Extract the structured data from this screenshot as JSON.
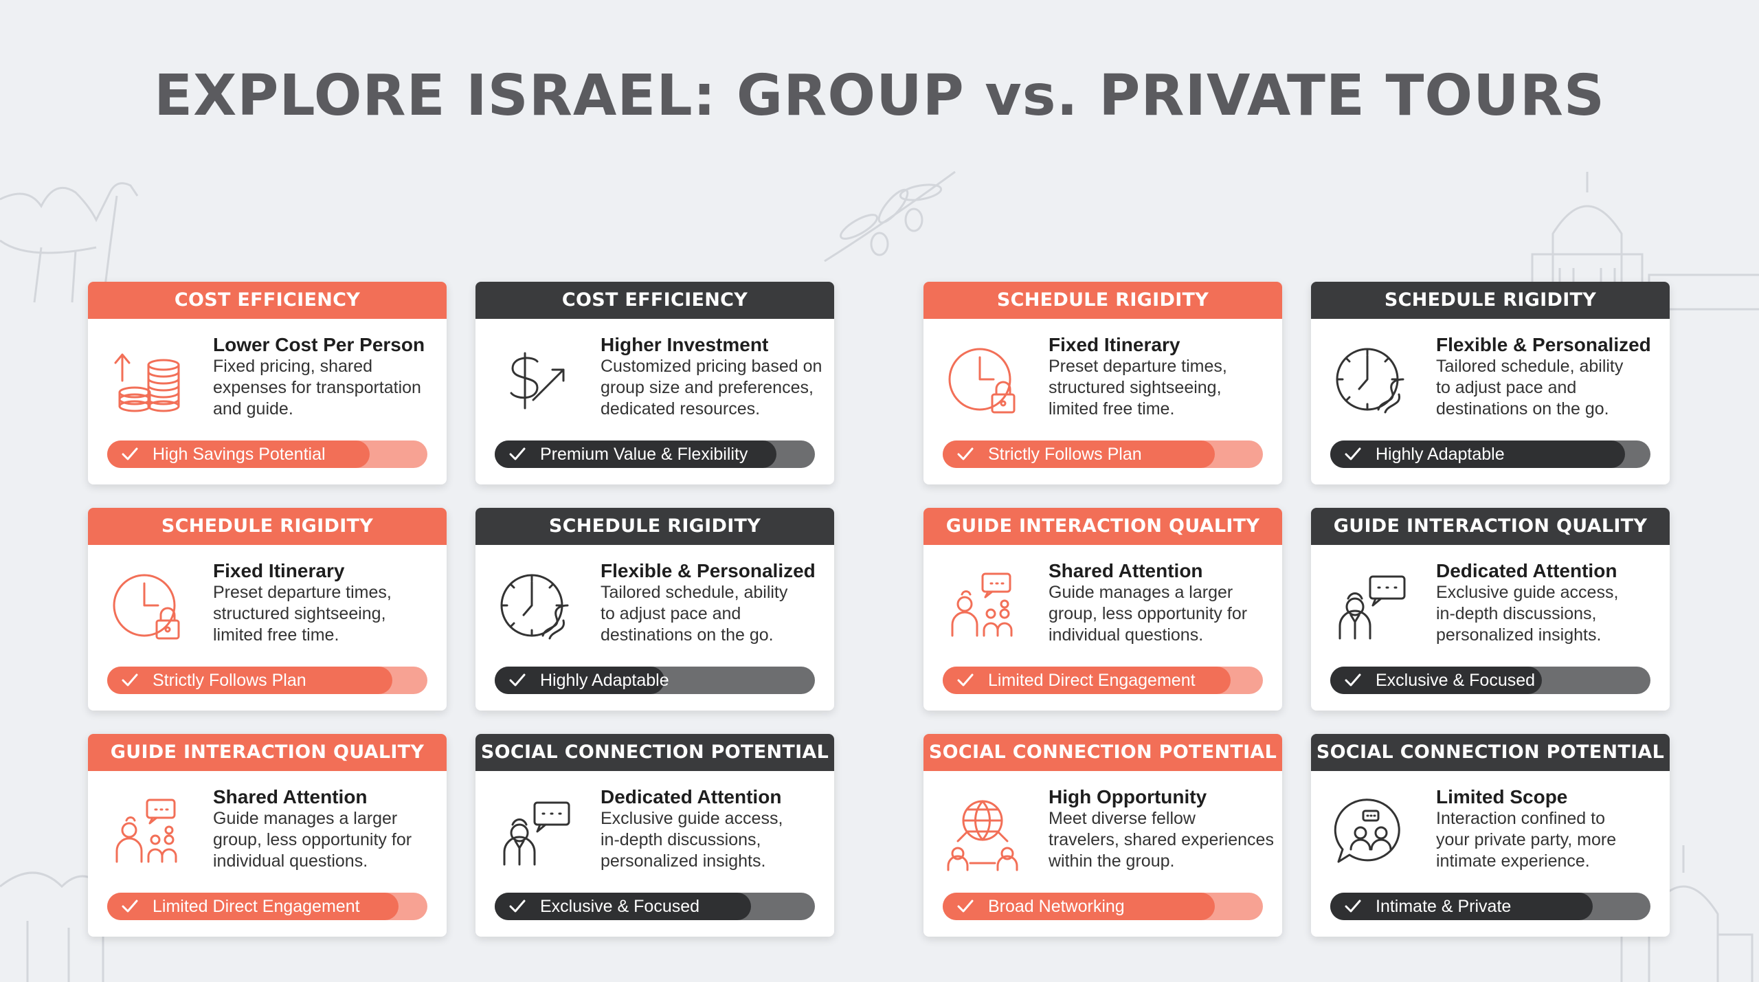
{
  "title": "EXPLORE ISRAEL: GROUP vs. PRIVATE TOURS",
  "colors": {
    "group_accent": "#f26f57",
    "private_accent": "#3a3b3d",
    "background": "#eef0f3"
  },
  "cards": [
    {
      "style": "group",
      "header": "COST EFFICIENCY",
      "icon": "coins-stack-icon",
      "heading": "Lower Cost Per Person",
      "description": "Fixed pricing, shared\nexpenses for transportation\nand guide.",
      "badge": "High Savings Potential",
      "level": 0.82
    },
    {
      "style": "private",
      "header": "COST EFFICIENCY",
      "icon": "dollar-growth-icon",
      "heading": "Higher Investment",
      "description": "Customized pricing based on\ngroup size and preferences,\ndedicated resources.",
      "badge": "Premium Value & Flexibility",
      "level": 0.88
    },
    {
      "style": "group",
      "header": "SCHEDULE RIGIDITY",
      "icon": "clock-lock-icon",
      "heading": "Fixed Itinerary",
      "description": "Preset departure times,\nstructured sightseeing,\nlimited free time.",
      "badge": "Strictly Follows Plan",
      "level": 0.85
    },
    {
      "style": "private",
      "header": "SCHEDULE RIGIDITY",
      "icon": "clock-road-icon",
      "heading": "Flexible & Personalized",
      "description": "Tailored schedule, ability\nto adjust pace and\ndestinations on the go.",
      "badge": "Highly Adaptable",
      "level": 0.92
    },
    {
      "style": "group",
      "header": "SCHEDULE RIGIDITY",
      "icon": "clock-lock-icon",
      "heading": "Fixed Itinerary",
      "description": "Preset departure times,\nstructured sightseeing,\nlimited free time.",
      "badge": "Strictly Follows Plan",
      "level": 0.89
    },
    {
      "style": "private",
      "header": "SCHEDULE RIGIDITY",
      "icon": "clock-road-icon",
      "heading": "Flexible & Personalized",
      "description": "Tailored schedule, ability\nto adjust pace and\ndestinations on the go.",
      "badge": "Highly Adaptable",
      "level": 0.53
    },
    {
      "style": "group",
      "header": "GUIDE INTERACTION QUALITY",
      "icon": "guide-group-icon",
      "heading": "Shared Attention",
      "description": "Guide manages a larger\ngroup, less opportunity for\nindividual questions.",
      "badge": "Limited Direct Engagement",
      "level": 0.9
    },
    {
      "style": "private",
      "header": "GUIDE INTERACTION QUALITY",
      "icon": "guide-chat-icon",
      "heading": "Dedicated Attention",
      "description": "Exclusive guide access,\nin-depth discussions,\npersonalized insights.",
      "badge": "Exclusive & Focused",
      "level": 0.66
    },
    {
      "style": "group",
      "header": "GUIDE INTERACTION QUALITY",
      "icon": "guide-group-icon",
      "heading": "Shared Attention",
      "description": "Guide manages a larger\ngroup, less opportunity for\nindividual questions.",
      "badge": "Limited Direct Engagement",
      "level": 0.91
    },
    {
      "style": "private",
      "header": "SOCIAL CONNECTION POTENTIAL",
      "icon": "guide-chat-icon",
      "heading": "Dedicated Attention",
      "description": "Exclusive guide access,\nin-depth discussions,\npersonalized insights.",
      "badge": "Exclusive & Focused",
      "level": 0.8
    },
    {
      "style": "group",
      "header": "SOCIAL CONNECTION POTENTIAL",
      "icon": "globe-network-icon",
      "heading": "High Opportunity",
      "description": "Meet diverse fellow\ntravelers, shared experiences\nwithin the group.",
      "badge": "Broad Networking",
      "level": 0.85
    },
    {
      "style": "private",
      "header": "SOCIAL CONNECTION POTENTIAL",
      "icon": "private-chat-icon",
      "heading": "Limited Scope",
      "description": "Interaction confined to\nyour private party, more\nintimate experience.",
      "badge": "Intimate & Private",
      "level": 0.82
    }
  ]
}
